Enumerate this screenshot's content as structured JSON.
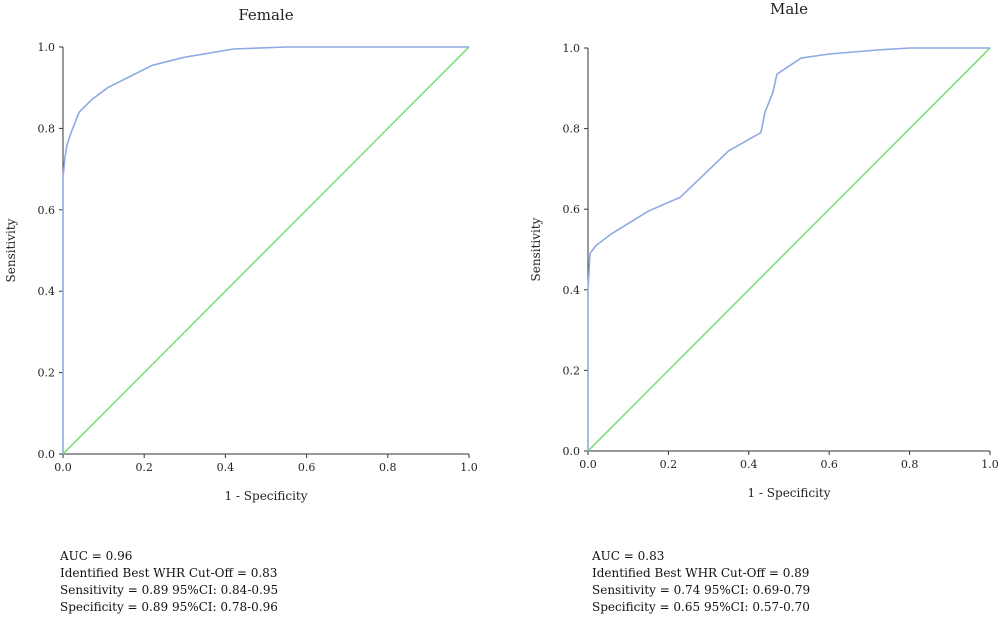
{
  "chart_data": [
    {
      "type": "line",
      "title": "Female",
      "xlabel": "1 - Specificity",
      "ylabel": "Sensitivity",
      "xlim": [
        0,
        1
      ],
      "ylim": [
        0,
        1
      ],
      "xticks": [
        "0.0",
        "0.2",
        "0.4",
        "0.6",
        "0.8",
        "1.0"
      ],
      "yticks": [
        "0.0",
        "0.2",
        "0.4",
        "0.6",
        "0.8",
        "1.0"
      ],
      "grid": false,
      "series": [
        {
          "role": "roc",
          "color": "#8fa9e2",
          "x": [
            0,
            0,
            0,
            0.005,
            0.01,
            0.02,
            0.04,
            0.07,
            0.11,
            0.16,
            0.22,
            0.3,
            0.42,
            0.55,
            0.7,
            1.0
          ],
          "y": [
            0,
            0.5,
            0.68,
            0.73,
            0.76,
            0.79,
            0.84,
            0.87,
            0.9,
            0.925,
            0.955,
            0.975,
            0.995,
            1.0,
            1.0,
            1.0
          ]
        },
        {
          "role": "reference",
          "color": "#80e080",
          "x": [
            0,
            1
          ],
          "y": [
            0,
            1
          ]
        }
      ],
      "annotations": [
        "AUC = 0.96",
        "Identified Best WHR Cut-Off = 0.83",
        "Sensitivity = 0.89 95%CI: 0.84-0.95",
        "Specificity = 0.89 95%CI: 0.78-0.96"
      ]
    },
    {
      "type": "line",
      "title": "Male",
      "xlabel": "1 - Specificity",
      "ylabel": "Sensitivity",
      "xlim": [
        0,
        1
      ],
      "ylim": [
        0,
        1
      ],
      "xticks": [
        "0.0",
        "0.2",
        "0.4",
        "0.6",
        "0.8",
        "1.0"
      ],
      "yticks": [
        "0.0",
        "0.2",
        "0.4",
        "0.6",
        "0.8",
        "1.0"
      ],
      "grid": false,
      "series": [
        {
          "role": "roc",
          "color": "#8fa9e2",
          "x": [
            0,
            0,
            0.005,
            0.02,
            0.06,
            0.15,
            0.23,
            0.35,
            0.43,
            0.44,
            0.46,
            0.47,
            0.53,
            0.6,
            0.72,
            0.8,
            1.0
          ],
          "y": [
            0,
            0.4,
            0.49,
            0.51,
            0.54,
            0.595,
            0.63,
            0.745,
            0.79,
            0.84,
            0.89,
            0.935,
            0.975,
            0.985,
            0.995,
            1.0,
            1.0
          ]
        },
        {
          "role": "reference",
          "color": "#80e080",
          "x": [
            0,
            1
          ],
          "y": [
            0,
            1
          ]
        }
      ],
      "annotations": [
        "AUC = 0.83",
        "Identified Best WHR Cut-Off = 0.89",
        "Sensitivity = 0.74 95%CI: 0.69-0.79",
        "Specificity = 0.65 95%CI: 0.57-0.70"
      ]
    }
  ]
}
